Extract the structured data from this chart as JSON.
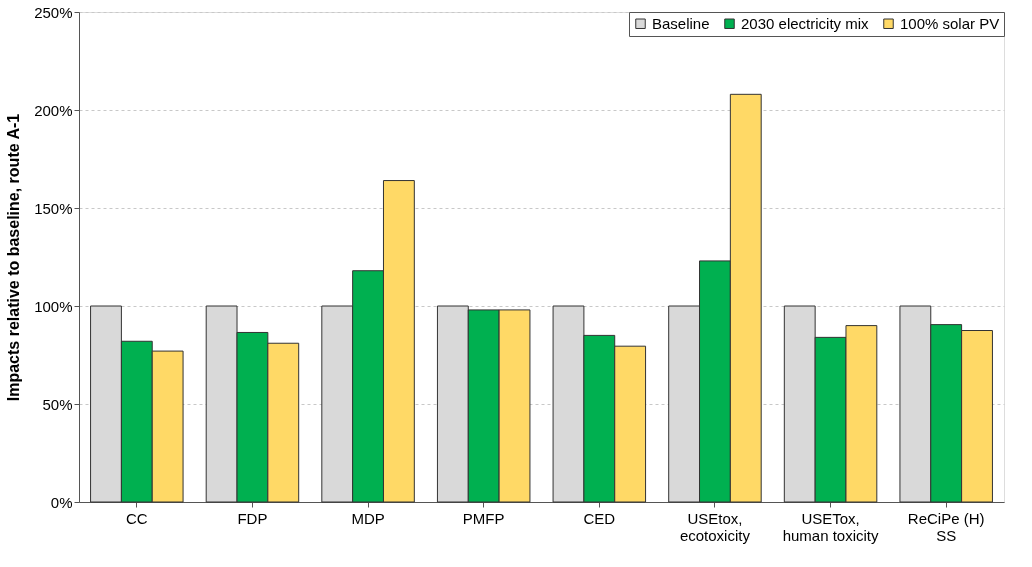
{
  "chart_data": {
    "type": "bar",
    "ylabel": "Impacts relative to baseline, route A-1",
    "categories": [
      "CC",
      "FDP",
      "MDP",
      "PMFP",
      "CED",
      "USEtox,\necotoxicity",
      "USETox,\nhuman toxicity",
      "ReCiPe (H)\nSS"
    ],
    "series": [
      {
        "name": "Baseline",
        "color": "#d9d9d9",
        "values": [
          100,
          100,
          100,
          100,
          100,
          100,
          100,
          100
        ]
      },
      {
        "name": "2030 electricity mix",
        "color": "#00b050",
        "values": [
          82,
          86.5,
          118,
          98,
          85,
          123,
          84,
          90.5
        ]
      },
      {
        "name": "100% solar PV",
        "color": "#ffd966",
        "values": [
          77,
          81,
          164,
          98,
          79.5,
          208,
          90,
          87.5
        ]
      }
    ],
    "ylim": [
      0,
      250
    ],
    "yticks": [
      {
        "value": 0,
        "label": "0%"
      },
      {
        "value": 50,
        "label": "50%"
      },
      {
        "value": 100,
        "label": "100%"
      },
      {
        "value": 150,
        "label": "150%"
      },
      {
        "value": 200,
        "label": "200%"
      },
      {
        "value": 250,
        "label": "250%"
      }
    ],
    "grid": "y",
    "legend": "top right"
  }
}
